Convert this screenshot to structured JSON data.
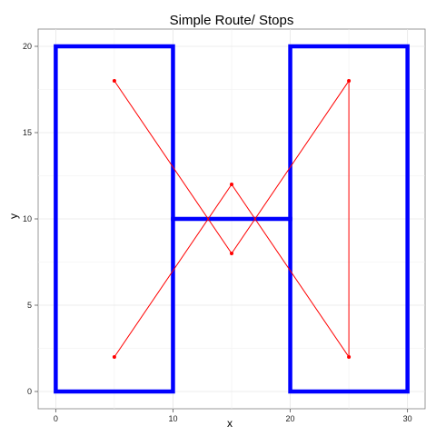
{
  "chart_data": {
    "type": "line",
    "title": "Simple Route/ Stops",
    "xlabel": "x",
    "ylabel": "y",
    "xlim": [
      -1.5,
      31.5
    ],
    "ylim": [
      -1,
      21
    ],
    "x_ticks": [
      0,
      10,
      20,
      30
    ],
    "y_ticks": [
      0,
      5,
      10,
      15,
      20
    ],
    "x_tick_labels": [
      "0",
      "10",
      "20",
      "30"
    ],
    "y_tick_labels": [
      "0",
      "5",
      "10",
      "15",
      "20"
    ],
    "grid": true,
    "legend": "none",
    "series": [
      {
        "role": "outline",
        "color": "#0000ff",
        "paths": [
          [
            [
              0,
              0
            ],
            [
              0,
              20
            ],
            [
              10,
              20
            ],
            [
              10,
              0
            ],
            [
              0,
              0
            ]
          ],
          [
            [
              20,
              0
            ],
            [
              20,
              20
            ],
            [
              30,
              20
            ],
            [
              30,
              0
            ],
            [
              20,
              0
            ]
          ],
          [
            [
              10,
              10
            ],
            [
              20,
              10
            ]
          ]
        ]
      },
      {
        "role": "route",
        "color": "#ff0000",
        "x": [
          5,
          15,
          25,
          25,
          15,
          5
        ],
        "y": [
          18,
          8,
          18,
          2,
          12,
          2
        ]
      }
    ]
  }
}
